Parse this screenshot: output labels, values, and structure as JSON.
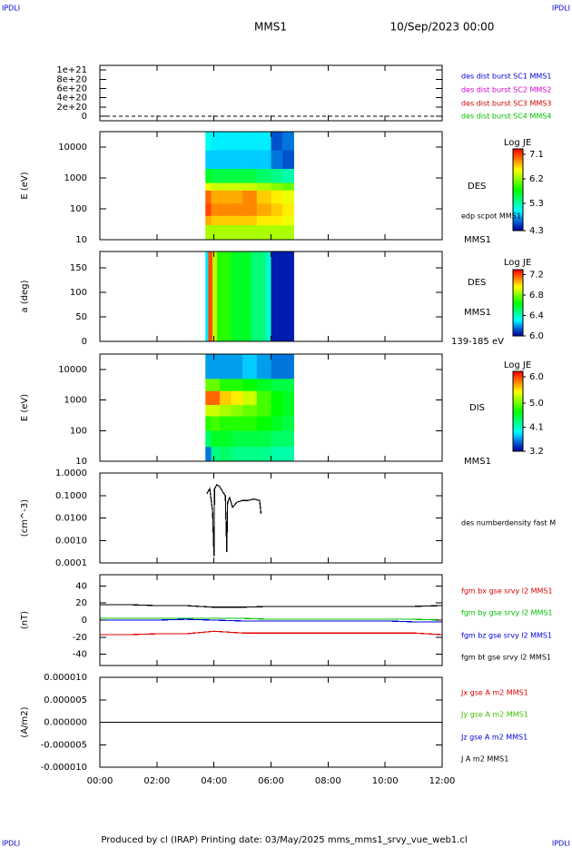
{
  "header": {
    "corner_labels": [
      "IPDLI",
      "IPDLI",
      "IPDLI",
      "IPDLI"
    ],
    "title": "MMS1",
    "date": "10/Sep/2023 00:00"
  },
  "footer": "Produced by cl (IRAP)   Printing date: 03/May/2025   mms_mms1_srvy_vue_web1.cl",
  "chart_data": [
    {
      "type": "line",
      "xlim": [
        0,
        12
      ],
      "ylim": [
        -1e+20,
        1.1e+21
      ],
      "yticks": [
        {
          "value": 1e+21,
          "label": "1e+21"
        },
        {
          "value": 8e+20,
          "label": "8e+20"
        },
        {
          "value": 6e+20,
          "label": "6e+20"
        },
        {
          "value": 4e+20,
          "label": "4e+20"
        },
        {
          "value": 2e+20,
          "label": "2e+20"
        },
        0
      ],
      "reference_line": 0,
      "series": [
        {
          "name": "des dist burst SC1 MMS1",
          "color": "#0000d0"
        },
        {
          "name": "des dist burst SC2 MMS2",
          "color": "#d000d0"
        },
        {
          "name": "des dist burst SC3 MMS3",
          "color": "#d00000"
        },
        {
          "name": "des dist burst SC4 MMS4",
          "color": "#00c000"
        }
      ]
    },
    {
      "type": "spectrogram",
      "y_label": "E (eV)",
      "xlim": [
        0,
        12
      ],
      "ylim": [
        10,
        31623
      ],
      "ylog": true,
      "yticks": [
        10,
        100,
        1000,
        10000
      ],
      "annotations": [
        "DES",
        "edp scpot MMS1",
        "MMS1"
      ],
      "colorbar_label": "Log JE",
      "zlim": [
        4.3,
        7.3
      ],
      "zticks": [
        7.1,
        6.2,
        5.3,
        4.3
      ],
      "xbins": [
        3.7,
        3.9,
        4.2,
        4.6,
        5.0,
        5.5,
        6.0,
        6.4,
        6.8
      ],
      "ybins": [
        10,
        30,
        60,
        150,
        400,
        700,
        2000,
        8000,
        31623
      ],
      "z": [
        [
          6.3,
          6.3,
          6.3,
          6.3,
          6.3,
          6.3,
          6.3,
          6.3
        ],
        [
          6.8,
          6.7,
          6.7,
          6.7,
          6.7,
          6.6,
          6.6,
          6.5
        ],
        [
          7.1,
          6.9,
          6.9,
          6.9,
          6.9,
          6.8,
          6.7,
          6.6
        ],
        [
          7.0,
          6.8,
          6.8,
          6.8,
          6.9,
          6.7,
          6.6,
          6.5
        ],
        [
          6.5,
          6.4,
          6.4,
          6.4,
          6.4,
          6.3,
          6.2,
          6.1
        ],
        [
          5.7,
          5.6,
          5.6,
          5.6,
          5.6,
          5.5,
          5.4,
          5.3
        ],
        [
          4.9,
          4.9,
          4.9,
          4.9,
          4.9,
          4.9,
          4.7,
          4.6
        ],
        [
          5.1,
          5.0,
          5.0,
          5.0,
          5.0,
          5.0,
          4.6,
          4.7
        ]
      ]
    },
    {
      "type": "spectrogram",
      "y_label": "a (deg)",
      "xlim": [
        0,
        12
      ],
      "ylim": [
        0,
        183
      ],
      "yticks": [
        0,
        50,
        100,
        150
      ],
      "annotations": [
        "DES",
        "MMS1",
        "139-185 eV"
      ],
      "colorbar_label": "Log JE",
      "zlim": [
        6.0,
        7.3
      ],
      "zticks": [
        7.2,
        6.8,
        6.4,
        {
          "value": 6.0,
          "label": "6.0"
        }
      ],
      "xbins": [
        3.7,
        3.8,
        3.95,
        4.1,
        4.6,
        5.3,
        5.8,
        6.0,
        6.8
      ],
      "ybins": [
        0,
        183
      ],
      "z": [
        [
          6.3,
          7.2,
          6.9,
          6.7,
          6.6,
          6.5,
          6.4,
          6.05
        ]
      ]
    },
    {
      "type": "spectrogram",
      "y_label": "E (eV)",
      "xlim": [
        0,
        12
      ],
      "ylim": [
        10,
        31623
      ],
      "ylog": true,
      "yticks": [
        10,
        100,
        1000,
        10000
      ],
      "annotations": [
        "DIS",
        "MMS1"
      ],
      "colorbar_label": "Log JE",
      "zlim": [
        3.2,
        6.2
      ],
      "zticks": [
        {
          "value": 6.0,
          "label": "6.0"
        },
        {
          "value": 5.0,
          "label": "5.0"
        },
        4.1,
        3.2
      ],
      "xbins": [
        3.7,
        3.9,
        4.2,
        4.6,
        5.0,
        5.5,
        6.0,
        6.4,
        6.8
      ],
      "ybins": [
        10,
        30,
        100,
        300,
        700,
        2000,
        5000,
        31623
      ],
      "z": [
        [
          3.6,
          4.3,
          4.4,
          4.3,
          4.3,
          4.3,
          4.2,
          4.2
        ],
        [
          4.4,
          4.6,
          4.6,
          4.5,
          4.5,
          4.5,
          4.4,
          4.4
        ],
        [
          4.8,
          4.9,
          4.8,
          4.8,
          4.8,
          4.7,
          4.6,
          4.5
        ],
        [
          5.3,
          5.3,
          5.2,
          5.1,
          5.0,
          4.9,
          4.7,
          4.6
        ],
        [
          5.9,
          5.9,
          5.6,
          5.5,
          5.3,
          4.9,
          4.7,
          4.6
        ],
        [
          5.0,
          5.0,
          4.8,
          4.8,
          4.7,
          4.6,
          4.5,
          4.5
        ],
        [
          3.7,
          3.7,
          3.7,
          3.7,
          3.8,
          3.7,
          3.6,
          3.6
        ]
      ]
    },
    {
      "type": "line",
      "y_label": "(cm^-3)",
      "xlim": [
        0,
        12
      ],
      "ylim": [
        0.0001,
        1
      ],
      "ylog": true,
      "yticks": [
        {
          "value": 1,
          "label": "1.0000"
        },
        {
          "value": 0.1,
          "label": "0.1000"
        },
        {
          "value": 0.01,
          "label": "0.0100"
        },
        {
          "value": 0.001,
          "label": "0.0010"
        },
        {
          "value": 0.0001,
          "label": "0.0001"
        }
      ],
      "x": [
        3.75,
        3.85,
        3.95,
        4.0,
        4.02,
        4.1,
        4.2,
        4.3,
        4.4,
        4.45,
        4.48,
        4.55,
        4.65,
        4.8,
        5.0,
        5.2,
        5.4,
        5.6,
        5.65
      ],
      "series": [
        {
          "name": "des numberdensity fast M",
          "color": "#000000",
          "values": [
            0.12,
            0.2,
            0.02,
            0.0002,
            0.2,
            0.3,
            0.25,
            0.15,
            0.1,
            0.0003,
            0.05,
            0.08,
            0.03,
            0.05,
            0.06,
            0.06,
            0.07,
            0.06,
            0.015
          ]
        }
      ]
    },
    {
      "type": "line",
      "y_label": "(nT)",
      "xlim": [
        0,
        12
      ],
      "ylim": [
        -53,
        53
      ],
      "yticks": [
        40,
        20,
        0,
        -20,
        -40
      ],
      "x": [
        0,
        1,
        2,
        3,
        4,
        5,
        6,
        7,
        8,
        9,
        10,
        11,
        12
      ],
      "series": [
        {
          "name": "fgm bx gse srvy l2 MMS1",
          "color": "#e00000",
          "values": [
            -17,
            -17,
            -16,
            -16,
            -13,
            -15,
            -15,
            -15,
            -15,
            -15,
            -15,
            -15,
            -17
          ]
        },
        {
          "name": "fgm by gse srvy l2 MMS1",
          "color": "#00c000",
          "values": [
            2,
            2,
            2,
            2,
            2,
            2,
            1,
            1,
            1,
            1,
            1,
            1,
            0
          ]
        },
        {
          "name": "fgm bz gse srvy l2 MMS1",
          "color": "#0000e0",
          "values": [
            0,
            0,
            0,
            1,
            0,
            -1,
            -1,
            -1,
            -1,
            -1,
            -1,
            -2,
            -2
          ]
        },
        {
          "name": "fgm bt gse srvy l2 MMS1",
          "color": "#000000",
          "values": [
            18,
            18,
            17,
            17,
            15,
            15,
            16,
            16,
            16,
            16,
            16,
            16,
            17
          ]
        }
      ]
    },
    {
      "type": "line",
      "y_label": "(A/m2)",
      "xlim": [
        0,
        12
      ],
      "ylim": [
        -1e-05,
        1e-05
      ],
      "yticks": [
        {
          "value": 1e-05,
          "label": "0.000010"
        },
        {
          "value": 5e-06,
          "label": "0.000005"
        },
        {
          "value": 0,
          "label": "0.000000"
        },
        {
          "value": -5e-06,
          "label": "-0.000005"
        },
        {
          "value": -1e-05,
          "label": "-0.000010"
        }
      ],
      "xticks": [
        {
          "value": 0,
          "label": "00:00"
        },
        {
          "value": 2,
          "label": "02:00"
        },
        {
          "value": 4,
          "label": "04:00"
        },
        {
          "value": 6,
          "label": "06:00"
        },
        {
          "value": 8,
          "label": "08:00"
        },
        {
          "value": 10,
          "label": "10:00"
        },
        {
          "value": 12,
          "label": "12:00"
        }
      ],
      "x": [
        0,
        12
      ],
      "series": [
        {
          "name": "Jx gse A m2 MMS1",
          "color": "#e00000",
          "values": [
            0,
            0
          ]
        },
        {
          "name": "Jy gse A m2 MMS1",
          "color": "#40c000",
          "values": [
            0,
            0
          ]
        },
        {
          "name": "Jz gse A m2 MMS1",
          "color": "#0000e0",
          "values": [
            0,
            0
          ]
        },
        {
          "name": "J A m2 MMS1",
          "color": "#000000",
          "values": [
            0,
            0
          ]
        }
      ]
    }
  ]
}
